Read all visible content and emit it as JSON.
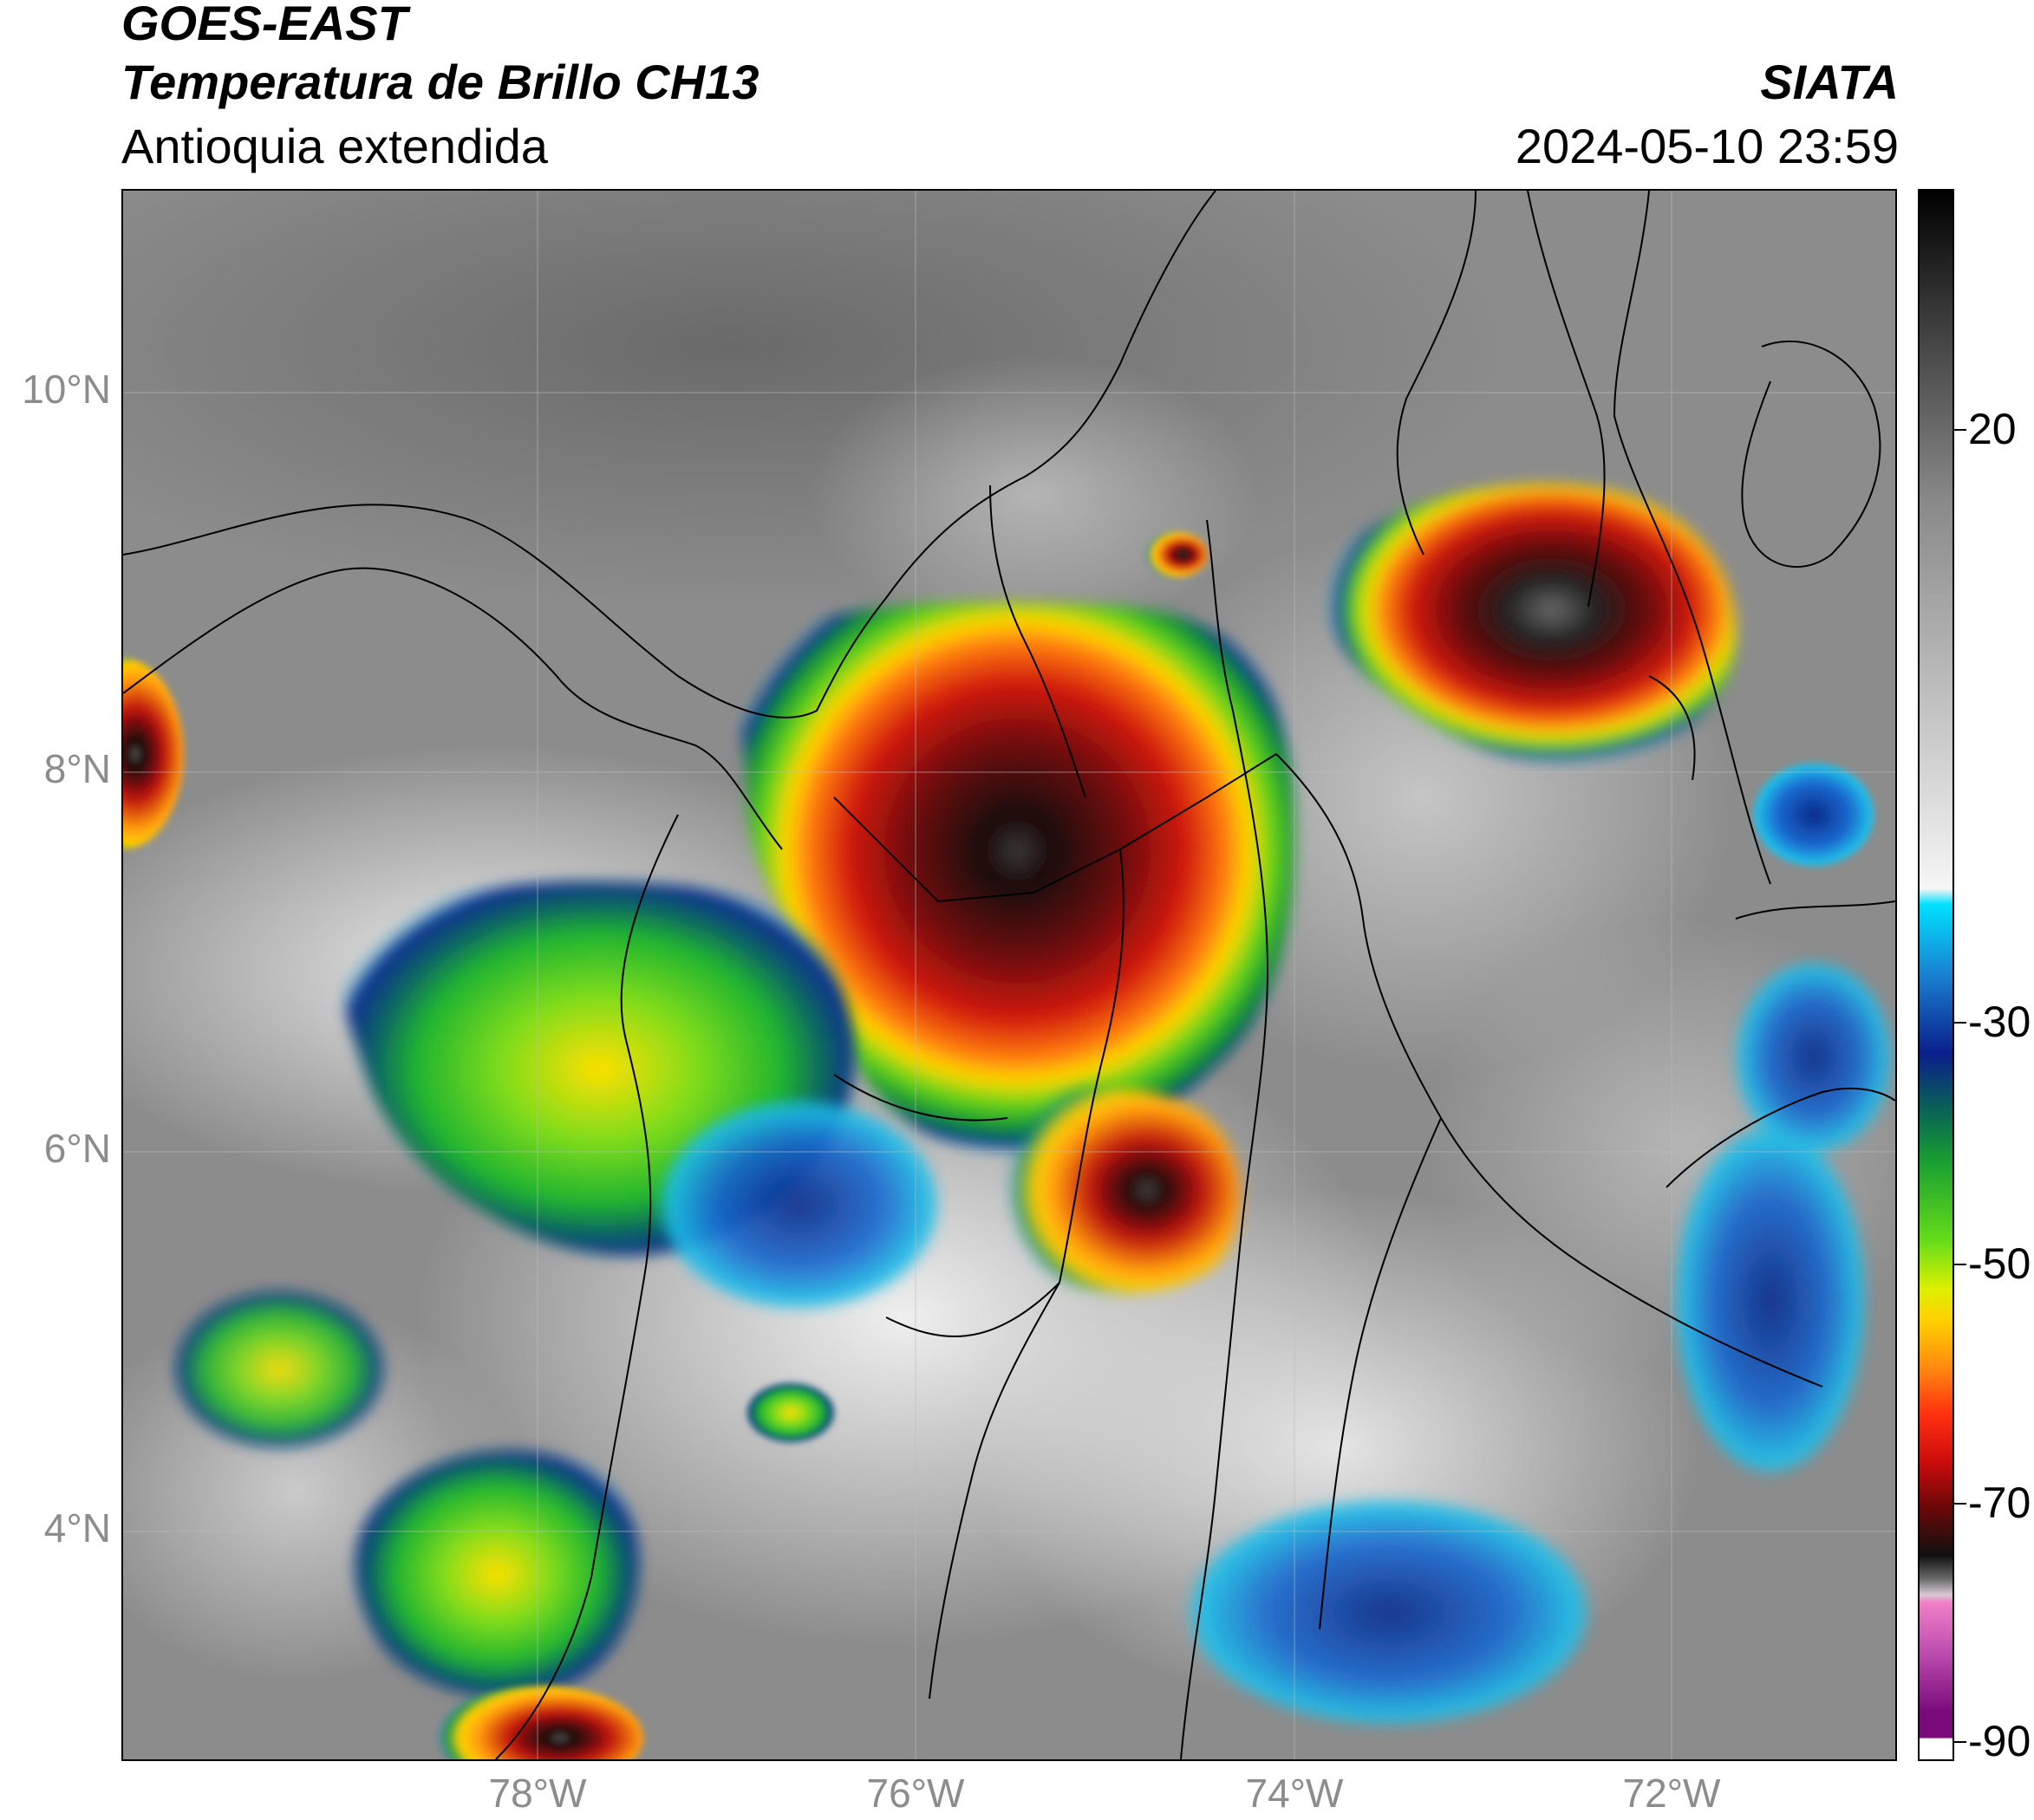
{
  "header": {
    "satellite": "GOES-EAST",
    "product": "Temperatura de Brillo CH13",
    "region": "Antioquia extendida",
    "agency": "SIATA",
    "datetime": "2024-05-10 23:59"
  },
  "map": {
    "lat_ticks": [
      "10°N",
      "8°N",
      "6°N",
      "4°N"
    ],
    "lon_ticks": [
      "78°W",
      "76°W",
      "74°W",
      "72°W"
    ],
    "extent_lon": [
      -80.2,
      -70.8
    ],
    "extent_lat": [
      2.8,
      11.0
    ],
    "grid": true
  },
  "colorbar": {
    "ticks": [
      "20",
      "-30",
      "-50",
      "-70",
      "-90"
    ],
    "tick_values": [
      20,
      -30,
      -50,
      -70,
      -90
    ],
    "range": [
      -92,
      30
    ]
  }
}
